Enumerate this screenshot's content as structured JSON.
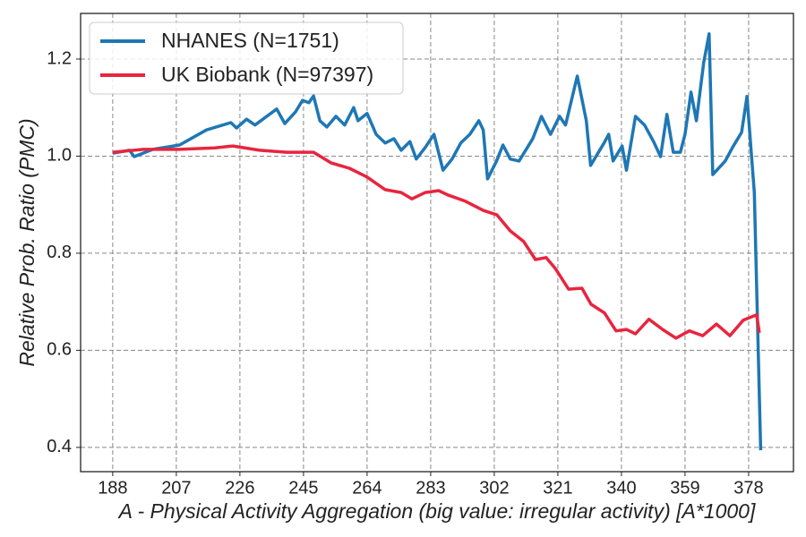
{
  "chart_data": {
    "type": "line",
    "xlabel": "A - Physical Activity Aggregation (big value: irregular activity) [A*1000]",
    "ylabel": "Relative Prob. Ratio (PMC)",
    "xlim": [
      178.4,
      391.4
    ],
    "ylim": [
      0.35,
      1.294
    ],
    "xticks": [
      188,
      207,
      226,
      245,
      264,
      283,
      302,
      321,
      340,
      359,
      378
    ],
    "yticks": [
      0.4,
      0.6,
      0.8,
      {
        "value": 1.0,
        "label": "1.0"
      },
      1.2
    ],
    "grid": true,
    "legend": "upper left",
    "series": [
      {
        "name": "NHANES (N=1751)",
        "color": "#1f77b4",
        "x": [
          188,
          193,
          194.4,
          200,
          208,
          216,
          223.3,
          225,
          228,
          230.5,
          237,
          239.4,
          242.6,
          244.7,
          246.6,
          248,
          249.9,
          252,
          254.7,
          257.3,
          260,
          261.3,
          264,
          266.7,
          269.4,
          272,
          274.2,
          276.8,
          278.7,
          281.4,
          284,
          286.7,
          289.4,
          292,
          294.7,
          297.4,
          298.7,
          300,
          302.7,
          304.6,
          306.8,
          309.4,
          313.5,
          316.1,
          318.8,
          321.5,
          323.3,
          326.8,
          329.5,
          330.8,
          334.8,
          336.2,
          337.5,
          340.2,
          341.5,
          344.2,
          346.9,
          349.6,
          351.7,
          353.6,
          355.5,
          357.6,
          359,
          360.8,
          362.4,
          364.6,
          366.2,
          367.3,
          371,
          373.2,
          375.9,
          377.5,
          379.7,
          381.6
        ],
        "values": [
          1.006,
          1.012,
          0.999,
          1.014,
          1.023,
          1.054,
          1.069,
          1.058,
          1.076,
          1.064,
          1.097,
          1.067,
          1.091,
          1.115,
          1.11,
          1.124,
          1.073,
          1.06,
          1.082,
          1.064,
          1.1,
          1.073,
          1.088,
          1.045,
          1.027,
          1.036,
          1.012,
          1.03,
          0.994,
          1.018,
          1.045,
          0.971,
          0.994,
          1.027,
          1.045,
          1.073,
          1.054,
          0.953,
          0.99,
          1.023,
          0.994,
          0.99,
          1.036,
          1.082,
          1.045,
          1.082,
          1.064,
          1.165,
          1.073,
          0.981,
          1.027,
          1.045,
          0.99,
          1.021,
          0.971,
          1.082,
          1.064,
          1.03,
          0.999,
          1.086,
          1.008,
          1.008,
          1.045,
          1.132,
          1.073,
          1.193,
          1.252,
          0.962,
          0.99,
          1.018,
          1.049,
          1.123,
          0.925,
          0.394
        ]
      },
      {
        "name": "UK Biobank (N=97397)",
        "color": "#e8253f",
        "x": [
          188,
          197.1,
          207.8,
          218.5,
          223.9,
          231.9,
          240,
          248,
          253.3,
          258.7,
          264,
          269.4,
          274.2,
          277.4,
          281.4,
          285.4,
          288.1,
          293.4,
          298.8,
          302.8,
          306.8,
          310.8,
          314.3,
          317.5,
          320.2,
          324.2,
          328.2,
          330.9,
          334.9,
          338.4,
          341.5,
          344.2,
          348.2,
          352.3,
          356.3,
          360.3,
          364.3,
          368.4,
          372.4,
          376.4,
          380.4,
          381.2
        ],
        "values": [
          1.008,
          1.014,
          1.014,
          1.017,
          1.021,
          1.012,
          1.008,
          1.008,
          0.986,
          0.975,
          0.957,
          0.931,
          0.925,
          0.912,
          0.925,
          0.929,
          0.92,
          0.907,
          0.888,
          0.879,
          0.846,
          0.824,
          0.787,
          0.791,
          0.769,
          0.726,
          0.728,
          0.695,
          0.677,
          0.64,
          0.643,
          0.634,
          0.664,
          0.643,
          0.625,
          0.64,
          0.63,
          0.654,
          0.63,
          0.662,
          0.673,
          0.636
        ]
      }
    ]
  }
}
